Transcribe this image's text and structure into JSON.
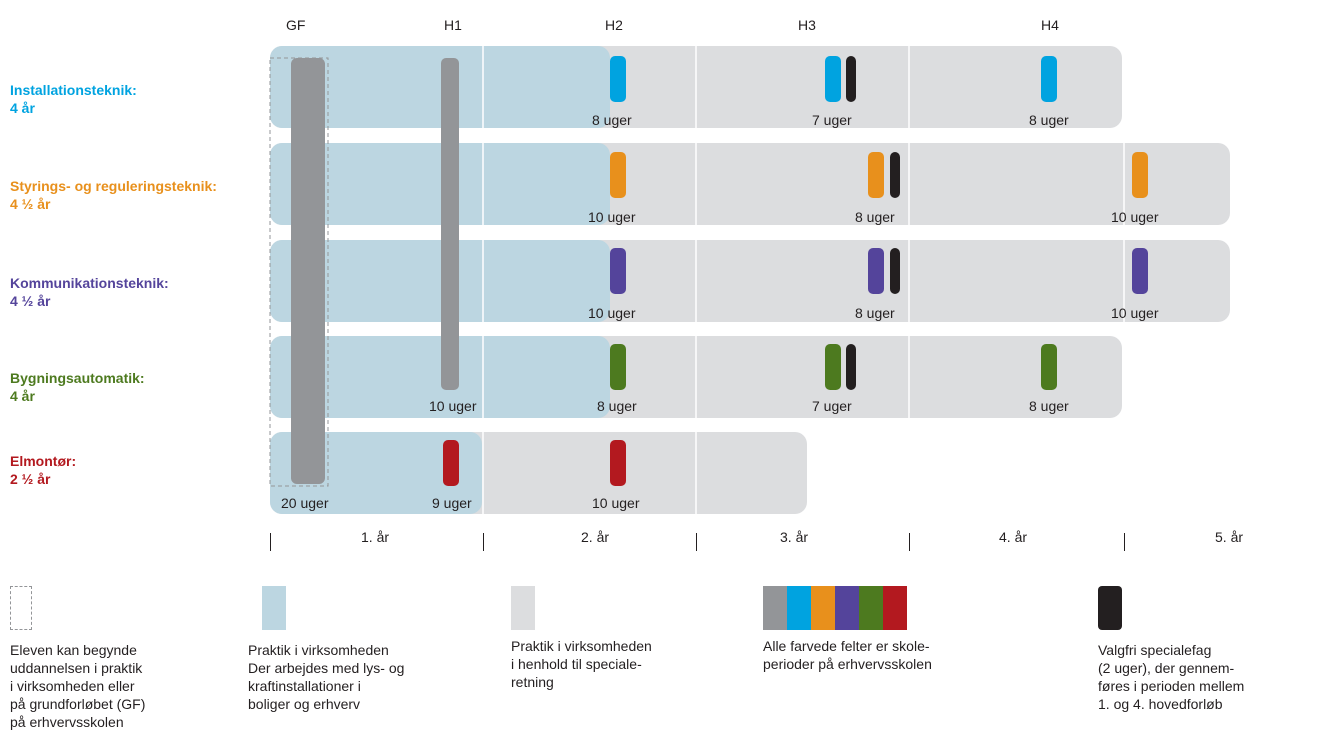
{
  "header": {
    "phases": [
      "GF",
      "H1",
      "H2",
      "H3",
      "H4"
    ]
  },
  "rows": [
    {
      "name": "Installationsteknik:",
      "duration": "4 år",
      "color": "#00a3e0",
      "labels": [
        "8 uger",
        "7 uger",
        "8 uger"
      ]
    },
    {
      "name": "Styrings- og reguleringsteknik:",
      "duration": "4 ½ år",
      "color": "#e8901c",
      "labels": [
        "10 uger",
        "8 uger",
        "10 uger"
      ]
    },
    {
      "name": "Kommunikationsteknik:",
      "duration": "4 ½ år",
      "color": "#54449b",
      "labels": [
        "10 uger",
        "8 uger",
        "10 uger"
      ]
    },
    {
      "name": "Bygningsautomatik:",
      "duration": "4 år",
      "color": "#4d7a1f",
      "labels": [
        "10 uger",
        "8 uger",
        "7 uger",
        "8 uger"
      ]
    },
    {
      "name": "Elmontør:",
      "duration": "2 ½ år",
      "color": "#b3191f",
      "labels": [
        "20 uger",
        "9 uger",
        "10 uger"
      ]
    }
  ],
  "years": [
    "1. år",
    "2. år",
    "3. år",
    "4. år",
    "5. år"
  ],
  "legend": {
    "dashed": "Eleven kan begynde\nuddannelsen i praktik\ni virksomheden eller\npå grundforløbet (GF)\npå erhvervsskolen",
    "lightblue": "Praktik i virksomheden\nDer arbejdes med lys- og\nkraftinstallationer i\nboliger og erhverv",
    "lightgray": "Praktik i virksomheden\ni henhold til speciale-\nretning",
    "colored": "Alle farvede felter er skole-\nperioder på erhvervsskolen",
    "black": "Valgfri specialefag\n(2 uger), der gennem-\nføres i perioden mellem\n1. og 4. hovedforløb"
  },
  "colors": {
    "practice_blue": "#bcd6e1",
    "practice_gray": "#dcdddf",
    "school_gray": "#939598",
    "elective_black": "#231f20",
    "legend_swatches": [
      "#939598",
      "#00a3e0",
      "#e8901c",
      "#54449b",
      "#4d7a1f",
      "#b3191f"
    ]
  }
}
